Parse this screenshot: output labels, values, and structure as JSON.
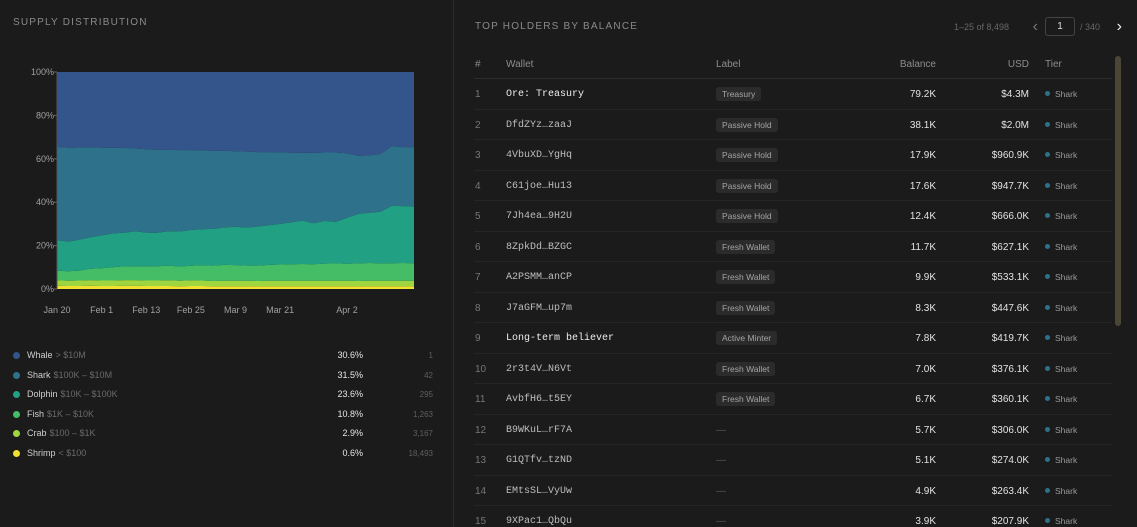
{
  "left_title": "SUPPLY DISTRIBUTION",
  "right_title": "TOP HOLDERS BY BALANCE",
  "pager": {
    "range_text": "1–25 of 8,498",
    "page": "1",
    "total_text": "/ 340",
    "prev_icon": "chevron-left-icon",
    "next_icon": "chevron-right-icon"
  },
  "columns": {
    "num": "#",
    "wallet": "Wallet",
    "label": "Label",
    "balance": "Balance",
    "usd": "USD",
    "tier": "Tier"
  },
  "legend": [
    {
      "name": "Whale",
      "range": "> $10M",
      "pct": "30.6%",
      "count": "1",
      "color": "#34548c"
    },
    {
      "name": "Shark",
      "range": "$100K – $10M",
      "pct": "31.5%",
      "count": "42",
      "color": "#2d728a"
    },
    {
      "name": "Dolphin",
      "range": "$10K – $100K",
      "pct": "23.6%",
      "count": "295",
      "color": "#21a083"
    },
    {
      "name": "Fish",
      "range": "$1K – $10K",
      "pct": "10.8%",
      "count": "1,263",
      "color": "#44bd66"
    },
    {
      "name": "Crab",
      "range": "$100 – $1K",
      "pct": "2.9%",
      "count": "3,167",
      "color": "#9fd640"
    },
    {
      "name": "Shrimp",
      "range": "< $100",
      "pct": "0.6%",
      "count": "18,493",
      "color": "#f1e12e"
    }
  ],
  "rows": [
    {
      "num": "1",
      "wallet": "Ore: Treasury",
      "named": true,
      "label": "Treasury",
      "balance": "79.2K",
      "usd": "$4.3M",
      "tier": "Shark"
    },
    {
      "num": "2",
      "wallet": "DfdZYz…zaaJ",
      "named": false,
      "label": "Passive Hold",
      "balance": "38.1K",
      "usd": "$2.0M",
      "tier": "Shark"
    },
    {
      "num": "3",
      "wallet": "4VbuXD…YgHq",
      "named": false,
      "label": "Passive Hold",
      "balance": "17.9K",
      "usd": "$960.9K",
      "tier": "Shark"
    },
    {
      "num": "4",
      "wallet": "C61joe…Hu13",
      "named": false,
      "label": "Passive Hold",
      "balance": "17.6K",
      "usd": "$947.7K",
      "tier": "Shark"
    },
    {
      "num": "5",
      "wallet": "7Jh4ea…9H2U",
      "named": false,
      "label": "Passive Hold",
      "balance": "12.4K",
      "usd": "$666.0K",
      "tier": "Shark"
    },
    {
      "num": "6",
      "wallet": "8ZpkDd…BZGC",
      "named": false,
      "label": "Fresh Wallet",
      "balance": "11.7K",
      "usd": "$627.1K",
      "tier": "Shark"
    },
    {
      "num": "7",
      "wallet": "A2PSMM…anCP",
      "named": false,
      "label": "Fresh Wallet",
      "balance": "9.9K",
      "usd": "$533.1K",
      "tier": "Shark"
    },
    {
      "num": "8",
      "wallet": "J7aGFM…up7m",
      "named": false,
      "label": "Fresh Wallet",
      "balance": "8.3K",
      "usd": "$447.6K",
      "tier": "Shark"
    },
    {
      "num": "9",
      "wallet": "Long-term believer",
      "named": true,
      "label": "Active Minter",
      "balance": "7.8K",
      "usd": "$419.7K",
      "tier": "Shark"
    },
    {
      "num": "10",
      "wallet": "2r3t4V…N6Vt",
      "named": false,
      "label": "Fresh Wallet",
      "balance": "7.0K",
      "usd": "$376.1K",
      "tier": "Shark"
    },
    {
      "num": "11",
      "wallet": "AvbfH6…t5EY",
      "named": false,
      "label": "Fresh Wallet",
      "balance": "6.7K",
      "usd": "$360.1K",
      "tier": "Shark"
    },
    {
      "num": "12",
      "wallet": "B9WKuL…rF7A",
      "named": false,
      "label": "—",
      "balance": "5.7K",
      "usd": "$306.0K",
      "tier": "Shark"
    },
    {
      "num": "13",
      "wallet": "G1QTfv…tzND",
      "named": false,
      "label": "—",
      "balance": "5.1K",
      "usd": "$274.0K",
      "tier": "Shark"
    },
    {
      "num": "14",
      "wallet": "EMtsSL…VyUw",
      "named": false,
      "label": "—",
      "balance": "4.9K",
      "usd": "$263.4K",
      "tier": "Shark"
    },
    {
      "num": "15",
      "wallet": "9XPac1…QbQu",
      "named": false,
      "label": "—",
      "balance": "3.9K",
      "usd": "$207.9K",
      "tier": "Shark"
    }
  ],
  "tier_color": "#2d728a",
  "chart_data": {
    "type": "area",
    "stacked": true,
    "x": [
      "Jan 20",
      "Jan 23",
      "Jan 26",
      "Jan 29",
      "Feb 1",
      "Feb 4",
      "Feb 7",
      "Feb 10",
      "Feb 13",
      "Feb 16",
      "Feb 19",
      "Feb 22",
      "Feb 25",
      "Feb 28",
      "Mar 3",
      "Mar 6",
      "Mar 9",
      "Mar 12",
      "Mar 15",
      "Mar 18",
      "Mar 21",
      "Mar 24",
      "Mar 27",
      "Mar 28",
      "Mar 30",
      "Apr 1",
      "Apr 2",
      "Apr 3",
      "Apr 5",
      "Apr 6",
      "Apr 7",
      "Apr 9",
      "Apr 10"
    ],
    "x_ticks": [
      "Jan 20",
      "Feb 1",
      "Feb 13",
      "Feb 25",
      "Mar 9",
      "Mar 21",
      "Apr 2"
    ],
    "y_ticks": [
      "0%",
      "20%",
      "40%",
      "60%",
      "80%",
      "100%"
    ],
    "ylim": [
      0,
      100
    ],
    "series": [
      {
        "name": "Shrimp",
        "color": "#f1e12e",
        "values": [
          1.5,
          1.4,
          1.4,
          1.5,
          1.4,
          1.4,
          1.5,
          1.5,
          1.4,
          1.4,
          1.4,
          1.3,
          1.4,
          1.4,
          1.3,
          1.3,
          1.3,
          1.3,
          1.3,
          1.3,
          1.3,
          1.3,
          1.3,
          1.3,
          1.3,
          1.3,
          1.3,
          1.3,
          1.3,
          1.3,
          1.3,
          1.3,
          1.3
        ]
      },
      {
        "name": "Crab",
        "color": "#9fd640",
        "values": [
          2.5,
          2.4,
          2.5,
          2.6,
          2.5,
          2.5,
          2.6,
          2.6,
          2.5,
          2.5,
          2.6,
          2.5,
          2.6,
          2.5,
          2.4,
          2.5,
          2.5,
          2.5,
          2.4,
          2.5,
          2.5,
          2.5,
          2.5,
          2.5,
          2.5,
          2.5,
          2.5,
          2.4,
          2.5,
          2.5,
          2.5,
          2.5,
          2.5
        ]
      },
      {
        "name": "Fish",
        "color": "#44bd66",
        "values": [
          4.5,
          4.4,
          4.6,
          5.2,
          5.7,
          6.1,
          6.4,
          6.3,
          6.5,
          6.6,
          6.8,
          6.5,
          6.7,
          7.0,
          7.1,
          7.3,
          7.2,
          7.0,
          7.1,
          7.3,
          7.5,
          7.6,
          7.7,
          7.6,
          7.9,
          8.0,
          7.8,
          8.1,
          8.2,
          8.0,
          8.1,
          8.2,
          8.1
        ]
      },
      {
        "name": "Dolphin",
        "color": "#21a083",
        "values": [
          14,
          13.7,
          14.2,
          14.6,
          15.1,
          15.6,
          15.4,
          16.2,
          15.6,
          15.4,
          15.9,
          16.2,
          16.5,
          16.6,
          16.9,
          17.3,
          17.7,
          17.5,
          18.0,
          18.3,
          18.7,
          19.3,
          20.0,
          18.9,
          19.7,
          19.1,
          21.2,
          22.8,
          23.1,
          23.8,
          26.4,
          26.2,
          26.2
        ]
      },
      {
        "name": "Shark",
        "color": "#2d728a",
        "values": [
          43,
          43.2,
          42.5,
          41.4,
          40.4,
          39.4,
          39.1,
          38.2,
          38.4,
          38.2,
          37.4,
          37.5,
          36.8,
          36.4,
          35.9,
          35.3,
          34.8,
          35.0,
          34.3,
          33.7,
          33.0,
          32.1,
          31.3,
          32.4,
          31.5,
          32.0,
          29.8,
          26.8,
          26.4,
          26.6,
          27.6,
          27.2,
          27.3
        ]
      },
      {
        "name": "Whale",
        "color": "#34548c",
        "values": [
          34.5,
          34.9,
          34.8,
          34.7,
          34.9,
          35.0,
          35.0,
          35.2,
          35.6,
          35.9,
          35.9,
          36.0,
          36.0,
          36.1,
          36.4,
          36.3,
          36.5,
          36.7,
          36.9,
          36.9,
          37.0,
          37.2,
          37.2,
          37.3,
          37.1,
          37.1,
          37.4,
          38.6,
          38.5,
          37.8,
          34.1,
          34.6,
          34.6
        ]
      }
    ]
  }
}
